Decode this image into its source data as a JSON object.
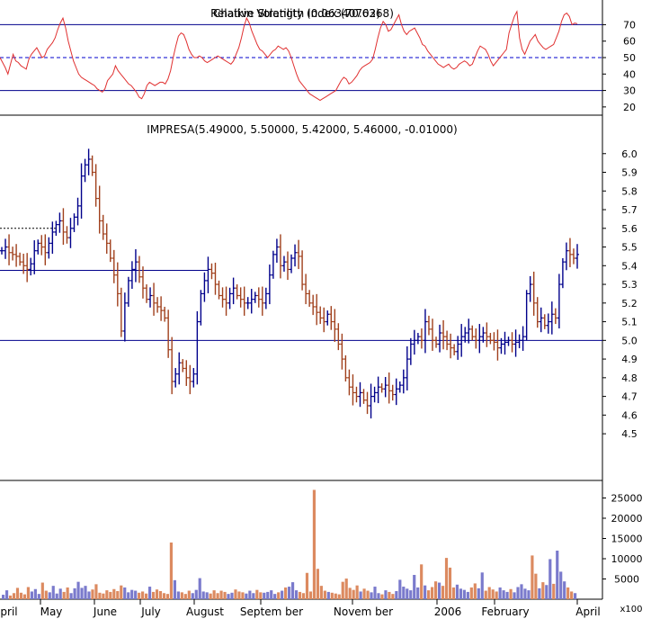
{
  "chart_data": [
    {
      "type": "line",
      "panel": "rsi",
      "title": "Relative Strength Index (70.6368)",
      "overlapping_text": "Chaikin Volatility (0.06340702)",
      "ylim": [
        15,
        85
      ],
      "yticks": [
        20,
        30,
        40,
        50,
        60,
        70
      ],
      "reference_lines": [
        {
          "value": 70,
          "style": "solid",
          "color": "#00008b"
        },
        {
          "value": 50,
          "style": "dashed",
          "color": "#0000cd"
        },
        {
          "value": 30,
          "style": "solid",
          "color": "#00008b"
        }
      ],
      "series": [
        {
          "color": "#e03030",
          "values": [
            50,
            47,
            44,
            40,
            46,
            52,
            48,
            47,
            45,
            44,
            43,
            49,
            52,
            54,
            56,
            53,
            50,
            51,
            55,
            57,
            59,
            62,
            67,
            71,
            74,
            68,
            60,
            54,
            48,
            44,
            40,
            38,
            37,
            36,
            35,
            34,
            33,
            31,
            30,
            29,
            31,
            36,
            38,
            40,
            45,
            42,
            40,
            38,
            36,
            34,
            33,
            31,
            29,
            26,
            25,
            28,
            33,
            35,
            34,
            33,
            34,
            35,
            35,
            34,
            37,
            42,
            50,
            57,
            63,
            65,
            64,
            60,
            55,
            52,
            50,
            50,
            51,
            50,
            48,
            47,
            48,
            49,
            50,
            51,
            50,
            49,
            48,
            47,
            46,
            48,
            52,
            56,
            62,
            69,
            74,
            71,
            66,
            62,
            58,
            55,
            54,
            52,
            50,
            52,
            54,
            55,
            57,
            56,
            55,
            56,
            54,
            50,
            45,
            40,
            36,
            34,
            32,
            30,
            28,
            27,
            26,
            25,
            24,
            25,
            26,
            27,
            28,
            29,
            30,
            33,
            36,
            38,
            37,
            34,
            35,
            37,
            39,
            42,
            44,
            45,
            46,
            47,
            49,
            55,
            62,
            68,
            72,
            70,
            66,
            67,
            70,
            73,
            76,
            70,
            66,
            64,
            66,
            67,
            68,
            65,
            62,
            58,
            57,
            54,
            52,
            50,
            48,
            46,
            45,
            44,
            45,
            46,
            44,
            43,
            44,
            46,
            47,
            48,
            47,
            45,
            46,
            50,
            54,
            57,
            56,
            55,
            52,
            48,
            45,
            47,
            49,
            51,
            53,
            55,
            65,
            70,
            75,
            78,
            62,
            55,
            52,
            56,
            60,
            62,
            64,
            60,
            58,
            56,
            55,
            56,
            57,
            58,
            62,
            66,
            72,
            76,
            77,
            75,
            70,
            71,
            70.6368
          ]
        }
      ]
    },
    {
      "type": "candlestick",
      "panel": "price",
      "title": "IMPRESA(5.49000, 5.50000, 5.42000, 5.46000, -0.01000)",
      "ylim": [
        4.25,
        6.1
      ],
      "yticks": [
        4.5,
        4.6,
        4.7,
        4.8,
        4.9,
        5.0,
        5.1,
        5.2,
        5.3,
        5.4,
        5.5,
        5.6,
        5.7,
        5.8,
        5.9,
        6.0
      ],
      "support_lines": [
        {
          "value": 5.0,
          "style": "solid"
        },
        {
          "value": 5.375,
          "style": "solid",
          "range": "partial"
        },
        {
          "value": 5.6,
          "style": "dashed",
          "range": "partial"
        }
      ],
      "close": [
        5.48,
        5.5,
        5.47,
        5.46,
        5.45,
        5.42,
        5.4,
        5.38,
        5.41,
        5.48,
        5.52,
        5.5,
        5.47,
        5.52,
        5.58,
        5.62,
        5.64,
        5.58,
        5.55,
        5.6,
        5.66,
        5.72,
        5.88,
        5.94,
        5.97,
        5.9,
        5.76,
        5.64,
        5.57,
        5.52,
        5.44,
        5.35,
        5.25,
        5.05,
        5.2,
        5.32,
        5.38,
        5.42,
        5.34,
        5.28,
        5.22,
        5.24,
        5.2,
        5.18,
        5.16,
        5.12,
        4.95,
        4.78,
        4.82,
        4.88,
        4.85,
        4.8,
        4.78,
        4.82,
        5.1,
        5.25,
        5.32,
        5.38,
        5.36,
        5.3,
        5.24,
        5.22,
        5.2,
        5.25,
        5.28,
        5.24,
        5.22,
        5.2,
        5.2,
        5.22,
        5.24,
        5.22,
        5.2,
        5.25,
        5.35,
        5.46,
        5.5,
        5.4,
        5.42,
        5.38,
        5.44,
        5.47,
        5.45,
        5.3,
        5.25,
        5.2,
        5.18,
        5.15,
        5.12,
        5.1,
        5.14,
        5.1,
        5.06,
        4.98,
        4.9,
        4.8,
        4.75,
        4.72,
        4.7,
        4.72,
        4.68,
        4.65,
        4.7,
        4.72,
        4.75,
        4.74,
        4.76,
        4.73,
        4.71,
        4.74,
        4.76,
        4.8,
        4.9,
        4.98,
        5.0,
        5.02,
        5.0,
        5.1,
        5.06,
        5.0,
        4.98,
        5.04,
        5.02,
        4.98,
        4.96,
        4.94,
        4.98,
        5.02,
        5.04,
        5.06,
        5.02,
        5.0,
        5.02,
        5.04,
        5.02,
        5.0,
        4.99,
        4.96,
        4.98,
        4.99,
        5.0,
        4.98,
        4.99,
        5.0,
        5.02,
        5.25,
        5.3,
        5.2,
        5.1,
        5.12,
        5.08,
        5.1,
        5.14,
        5.12,
        5.3,
        5.42,
        5.48,
        5.46,
        5.44,
        5.46
      ]
    },
    {
      "type": "bar",
      "panel": "volume",
      "unit_label": "x100",
      "ylim": [
        0,
        28000
      ],
      "yticks": [
        5000,
        10000,
        15000,
        20000,
        25000
      ],
      "values": [
        1100,
        2200,
        900,
        1500,
        2800,
        1600,
        1200,
        3000,
        1900,
        2500,
        1300,
        4100,
        2100,
        1700,
        3300,
        1400,
        2600,
        1800,
        2900,
        1500,
        2700,
        4300,
        2800,
        3300,
        1900,
        2400,
        3700,
        1600,
        1400,
        2200,
        1800,
        2500,
        2000,
        3400,
        2900,
        1700,
        2300,
        2100,
        1600,
        1900,
        1400,
        3100,
        1800,
        2400,
        2000,
        1500,
        1300,
        14000,
        4700,
        1900,
        1700,
        1300,
        2100,
        1500,
        2300,
        5200,
        1900,
        1700,
        1400,
        2200,
        1500,
        2100,
        1800,
        1300,
        1600,
        2400,
        1900,
        1700,
        1400,
        2100,
        1500,
        2300,
        1700,
        1600,
        1800,
        2200,
        1300,
        1700,
        2100,
        2900,
        3100,
        4200,
        2200,
        1800,
        1500,
        6500,
        1900,
        27000,
        7500,
        3300,
        2100,
        1800,
        1600,
        1400,
        1200,
        4300,
        5100,
        2800,
        2300,
        3400,
        1900,
        2600,
        2100,
        1700,
        3100,
        1500,
        1200,
        2200,
        1800,
        1300,
        2000,
        4800,
        3100,
        2600,
        2200,
        6000,
        2900,
        8600,
        3400,
        2200,
        3000,
        4400,
        4100,
        3300,
        10200,
        7800,
        2900,
        3600,
        2600,
        2300,
        1800,
        2900,
        3900,
        2700,
        6600,
        2100,
        3000,
        2400,
        1900,
        2900,
        2200,
        1800,
        2500,
        1700,
        3000,
        3700,
        2600,
        2200,
        10800,
        6300,
        2700,
        4200,
        3500,
        9900,
        3800,
        12000,
        6800,
        4400,
        2900,
        1900,
        1500
      ]
    }
  ],
  "x_axis": {
    "labels": [
      "pril",
      "May",
      "June",
      "July",
      "August",
      "Septem ber",
      "Novem ber",
      "2006",
      "February",
      "April"
    ]
  },
  "colors": {
    "up": "#00008b",
    "down": "#a0401c",
    "rsi_line": "#e03030",
    "volume_down": "#dc8a60",
    "volume_up": "#7a7acc",
    "axis": "#000000",
    "guide": "#00008b"
  }
}
